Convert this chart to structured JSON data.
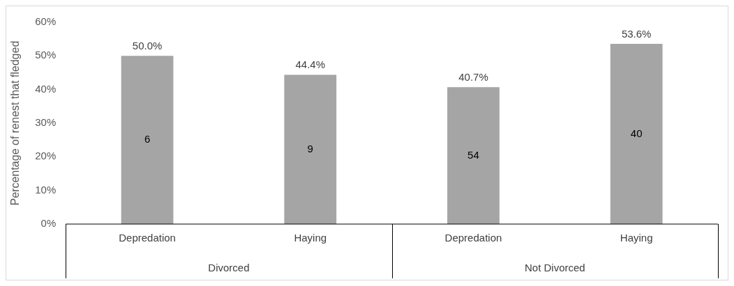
{
  "chart_data": {
    "type": "bar",
    "ylabel": "Percentage of renest that fledged",
    "categories": [
      "Depredation",
      "Haying",
      "Depredation",
      "Haying"
    ],
    "values": [
      50.0,
      44.4,
      40.7,
      53.6
    ],
    "color": "#a5a5a5",
    "value_labels": [
      "50.0%",
      "44.4%",
      "40.7%",
      "53.6%"
    ],
    "ylim": [
      0,
      60
    ],
    "yticks": [
      {
        "value": 0,
        "label": "0%"
      },
      {
        "value": 10,
        "label": "10%"
      },
      {
        "value": 20,
        "label": "20%"
      },
      {
        "value": 30,
        "label": "30%"
      },
      {
        "value": 40,
        "label": "40%"
      },
      {
        "value": 50,
        "label": "50%"
      },
      {
        "value": 60,
        "label": "60%"
      }
    ],
    "grid": false,
    "legend": false,
    "annotations": [
      "6",
      "9",
      "54",
      "40",
      "Divorced",
      "Not Divorced"
    ]
  }
}
